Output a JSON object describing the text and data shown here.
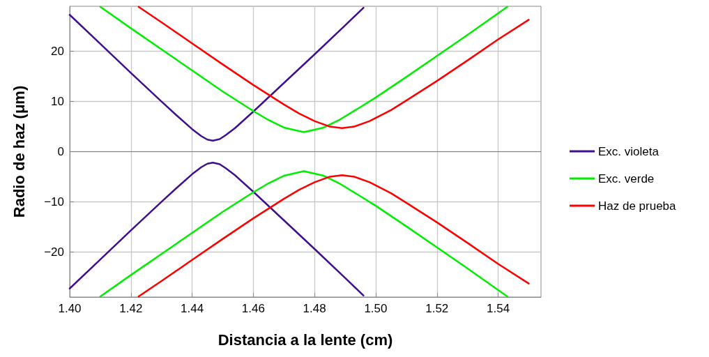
{
  "chart_data": {
    "type": "line",
    "xlabel": "Distancia a la lente (cm)",
    "ylabel": "Radio de haz (μm)",
    "xlim": [
      1.4,
      1.554
    ],
    "ylim": [
      -29,
      29
    ],
    "xticks": [
      {
        "value": 1.4,
        "label": "1.40"
      },
      {
        "value": 1.42,
        "label": "1.42"
      },
      {
        "value": 1.44,
        "label": "1.44"
      },
      {
        "value": 1.46,
        "label": "1.46"
      },
      {
        "value": 1.48,
        "label": "1.48"
      },
      {
        "value": 1.5,
        "label": "1.50"
      },
      {
        "value": 1.52,
        "label": "1.52"
      },
      {
        "value": 1.54,
        "label": "1.54"
      }
    ],
    "yticks": [
      {
        "value": -20,
        "label": "−20"
      },
      {
        "value": -10,
        "label": "−10"
      },
      0,
      10,
      20
    ],
    "grid": true,
    "legend": "right",
    "marker": "none",
    "line_style": "solid",
    "ref_lines": [
      {
        "axis": "y",
        "value": 0,
        "color": "#808080"
      }
    ],
    "series": [
      {
        "name": "Exc. violeta",
        "color": "#3f0f8f",
        "x": [
          1.4,
          1.41,
          1.42,
          1.43,
          1.435,
          1.44,
          1.443,
          1.445,
          1.4468,
          1.449,
          1.451,
          1.454,
          1.46,
          1.47,
          1.48,
          1.49,
          1.496
        ],
        "values": [
          27.3,
          21.5,
          15.7,
          10.0,
          7.2,
          4.5,
          3.1,
          2.4,
          2.2,
          2.5,
          3.3,
          4.7,
          8.0,
          13.7,
          19.4,
          25.2,
          28.7
        ]
      },
      {
        "color": "#3f0f8f",
        "x": [
          1.4,
          1.41,
          1.42,
          1.43,
          1.435,
          1.44,
          1.443,
          1.445,
          1.4468,
          1.449,
          1.451,
          1.454,
          1.46,
          1.47,
          1.48,
          1.49,
          1.496
        ],
        "values": [
          -27.3,
          -21.5,
          -15.7,
          -10.0,
          -7.2,
          -4.5,
          -3.1,
          -2.4,
          -2.2,
          -2.5,
          -3.3,
          -4.7,
          -8.0,
          -13.7,
          -19.4,
          -25.2,
          -28.7
        ]
      },
      {
        "name": "Exc. verde",
        "color": "#00ee00",
        "x": [
          1.41,
          1.42,
          1.43,
          1.44,
          1.45,
          1.46,
          1.465,
          1.47,
          1.4765,
          1.483,
          1.488,
          1.495,
          1.5,
          1.51,
          1.52,
          1.53,
          1.543
        ],
        "values": [
          28.9,
          24.6,
          20.4,
          16.2,
          12.0,
          8.1,
          6.3,
          4.8,
          3.9,
          4.8,
          6.3,
          8.9,
          10.8,
          14.9,
          19.1,
          23.3,
          28.9
        ]
      },
      {
        "color": "#00ee00",
        "x": [
          1.41,
          1.42,
          1.43,
          1.44,
          1.45,
          1.46,
          1.465,
          1.47,
          1.4765,
          1.483,
          1.488,
          1.495,
          1.5,
          1.51,
          1.52,
          1.53,
          1.543
        ],
        "values": [
          -28.9,
          -24.6,
          -20.4,
          -16.2,
          -12.0,
          -8.1,
          -6.3,
          -4.8,
          -3.9,
          -4.8,
          -6.3,
          -8.9,
          -10.8,
          -14.9,
          -19.1,
          -23.3,
          -28.9
        ]
      },
      {
        "name": "Haz de prueba",
        "color": "#ff0000",
        "x": [
          1.4225,
          1.43,
          1.44,
          1.45,
          1.46,
          1.47,
          1.475,
          1.48,
          1.485,
          1.489,
          1.493,
          1.498,
          1.505,
          1.51,
          1.52,
          1.53,
          1.54,
          1.55
        ],
        "values": [
          28.9,
          25.8,
          21.6,
          17.4,
          13.3,
          9.4,
          7.6,
          6.1,
          5.0,
          4.7,
          5.0,
          6.1,
          8.3,
          10.2,
          14.1,
          18.2,
          22.4,
          26.3
        ]
      },
      {
        "color": "#ff0000",
        "x": [
          1.4225,
          1.43,
          1.44,
          1.45,
          1.46,
          1.47,
          1.475,
          1.48,
          1.485,
          1.489,
          1.493,
          1.498,
          1.505,
          1.51,
          1.52,
          1.53,
          1.54,
          1.55
        ],
        "values": [
          -28.9,
          -25.8,
          -21.6,
          -17.4,
          -13.3,
          -9.4,
          -7.6,
          -6.1,
          -5.0,
          -4.7,
          -5.0,
          -6.1,
          -8.3,
          -10.2,
          -14.1,
          -18.2,
          -22.4,
          -26.3
        ]
      }
    ]
  }
}
